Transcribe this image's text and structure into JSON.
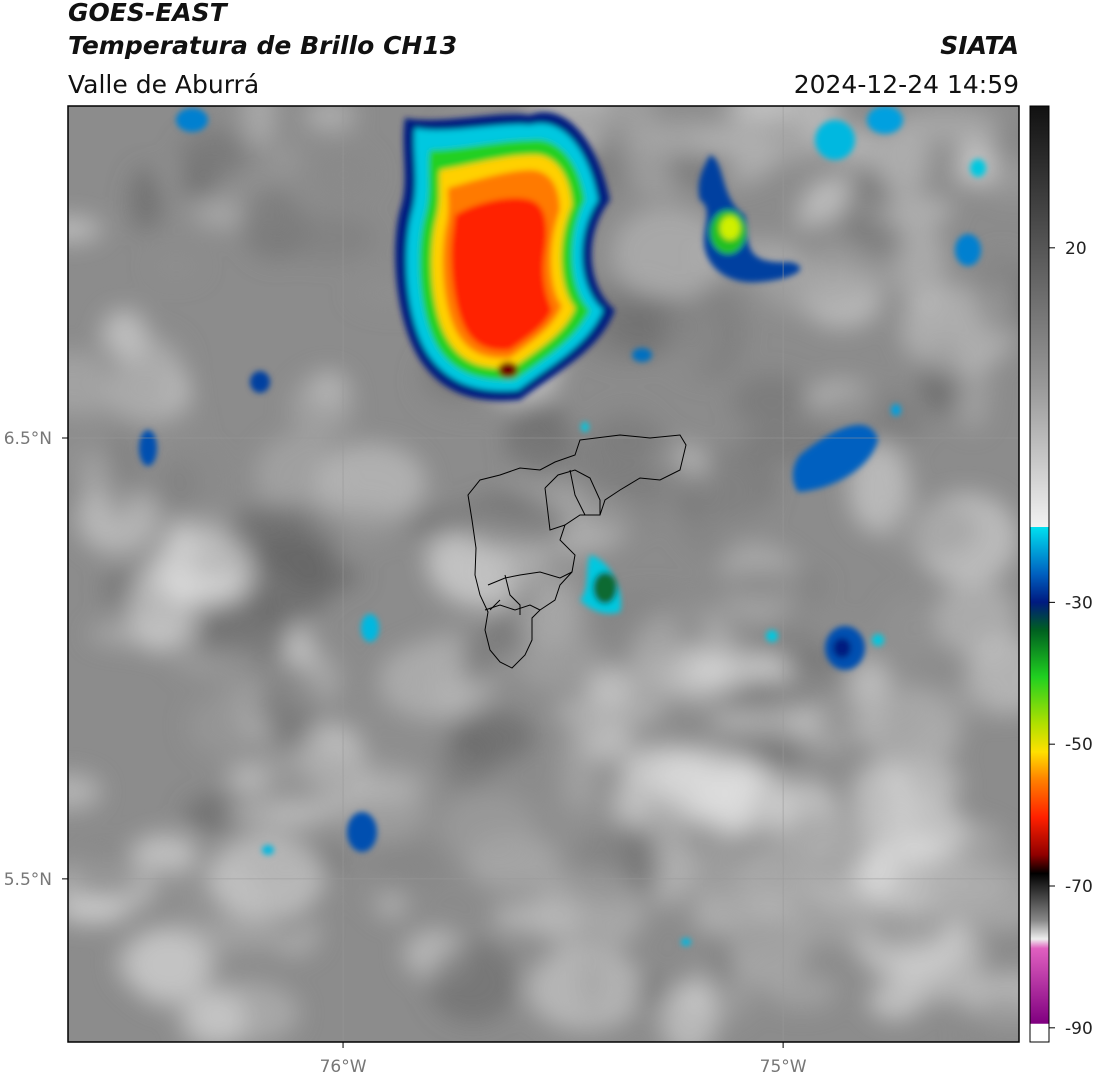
{
  "header": {
    "title": "GOES-EAST",
    "subtitle": "Temperatura de Brillo CH13",
    "region": "Valle de Aburrá",
    "source": "SIATA",
    "datetime": "2024-12-24 14:59"
  },
  "map": {
    "xlim": [
      -76.625,
      -74.464
    ],
    "ylim": [
      5.13,
      7.253
    ],
    "xticks": [
      {
        "value": -76,
        "label": "76°W"
      },
      {
        "value": -75,
        "label": "75°W"
      }
    ],
    "yticks": [
      {
        "value": 6.5,
        "label": "6.5°N"
      },
      {
        "value": 5.5,
        "label": "5.5°N"
      }
    ],
    "grid": true
  },
  "colorbar": {
    "lim": [
      -92,
      40
    ],
    "ticks": [
      20,
      -30,
      -50,
      -70,
      -90
    ]
  }
}
